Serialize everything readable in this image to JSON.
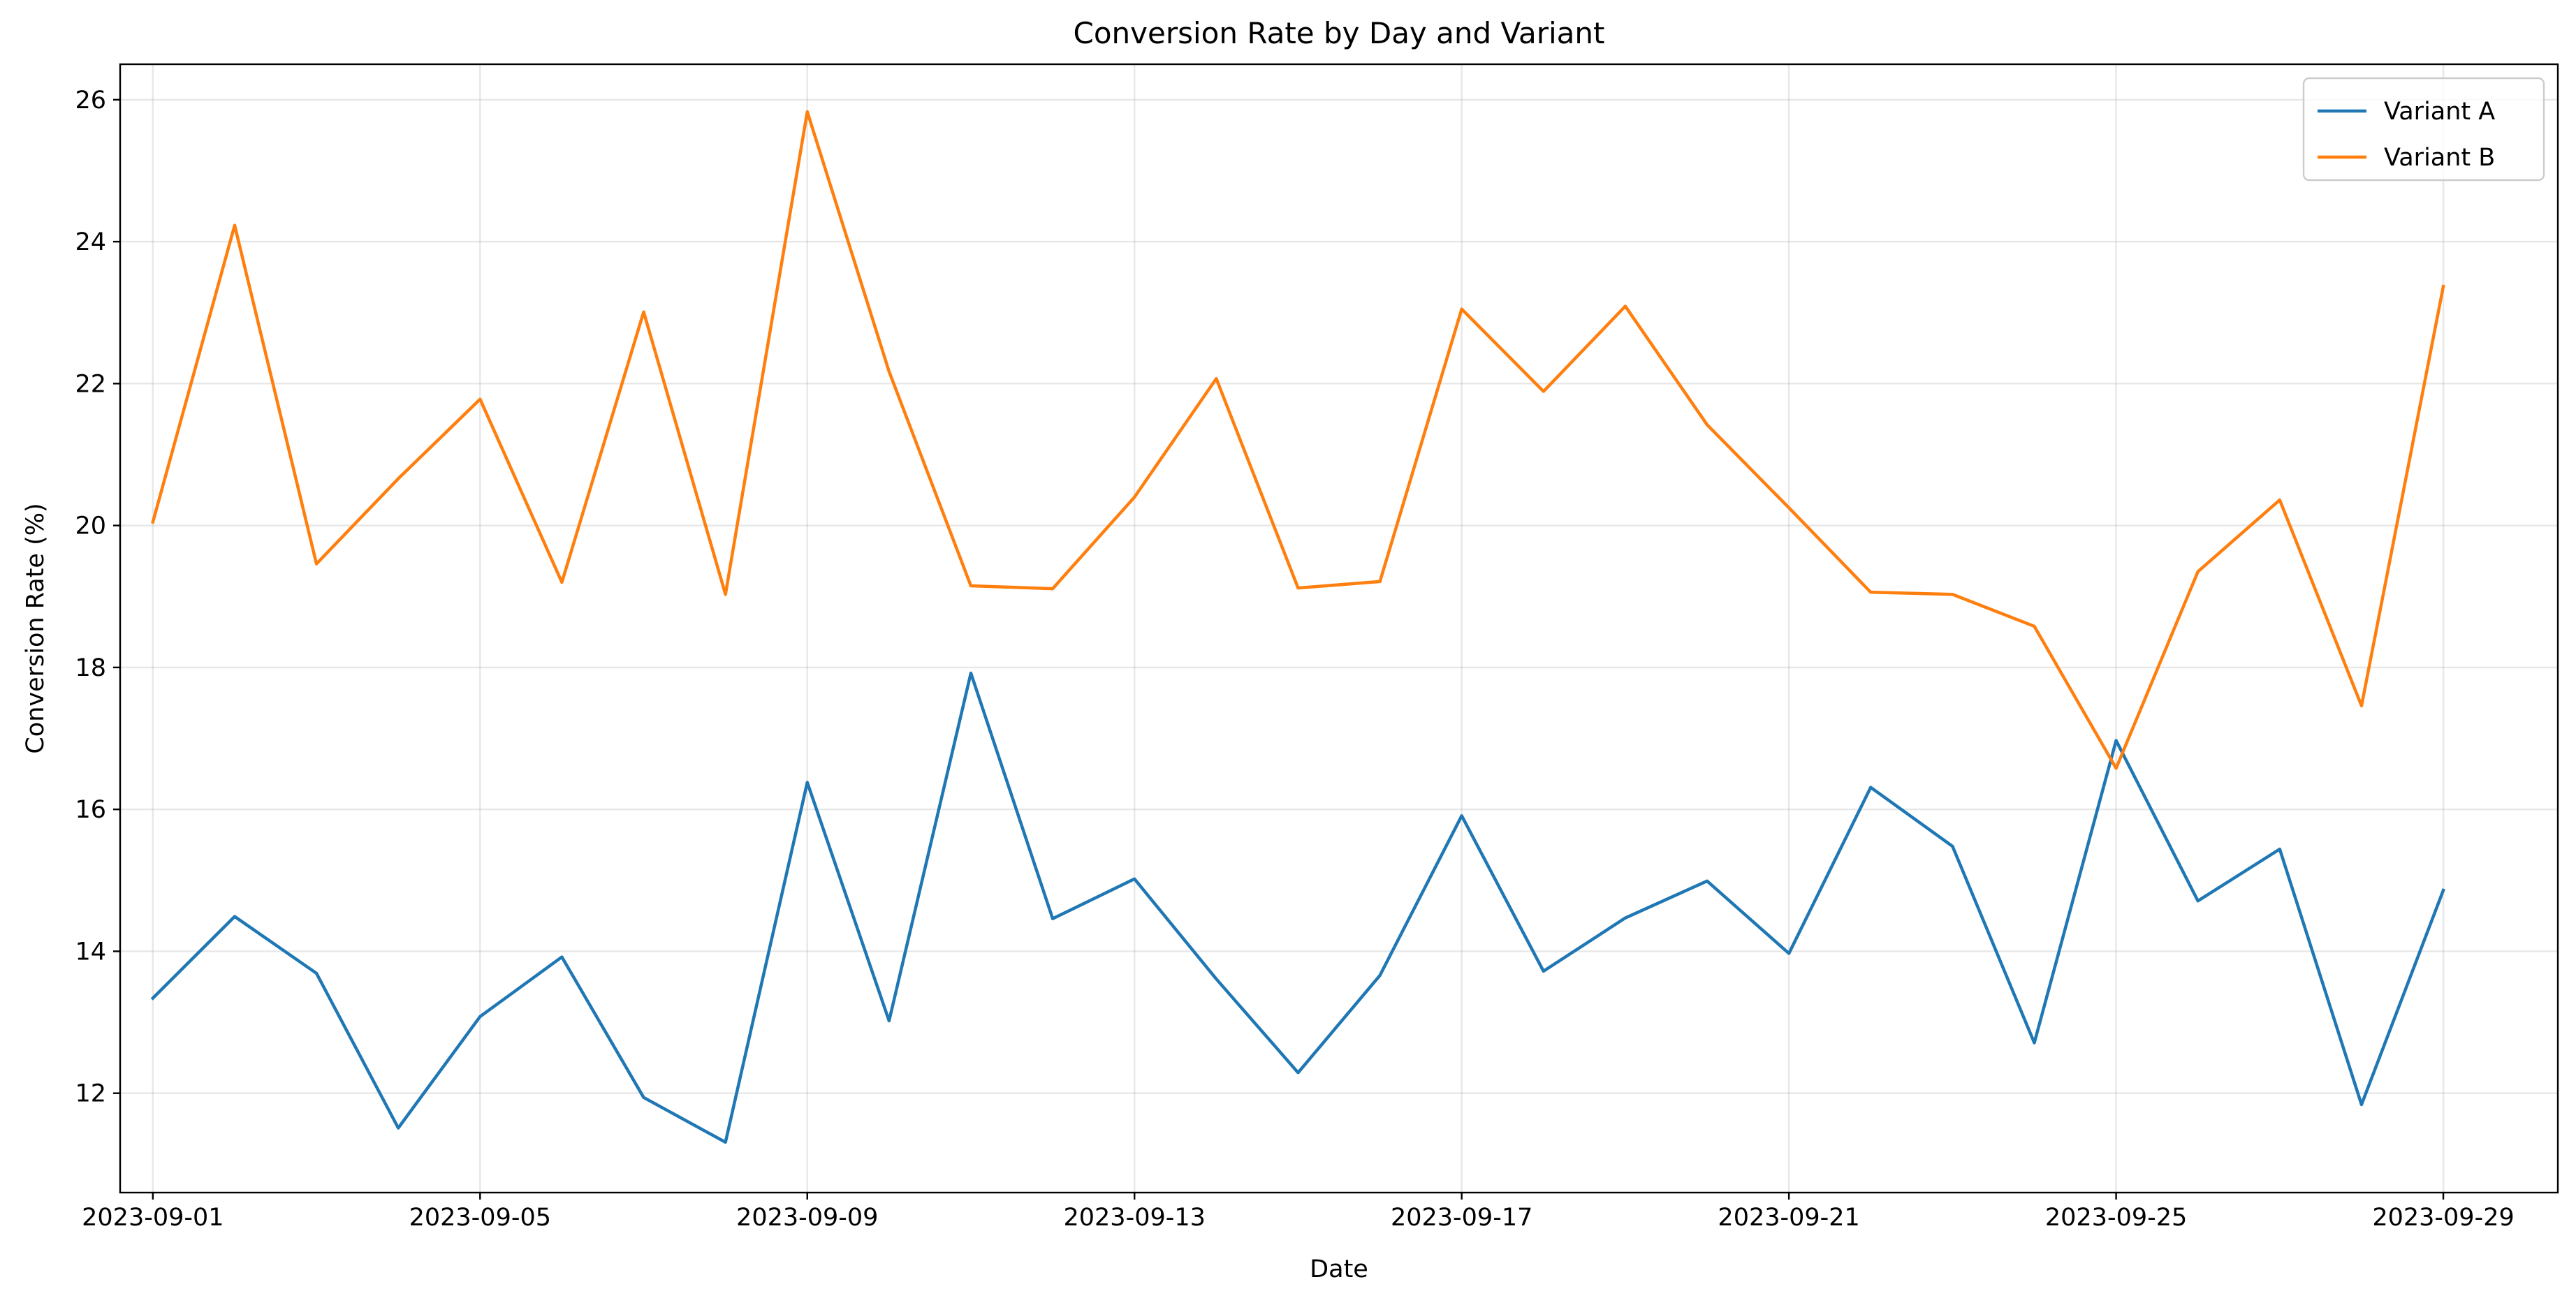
{
  "chart_data": {
    "type": "line",
    "title": "Conversion Rate by Day and Variant",
    "xlabel": "Date",
    "ylabel": "Conversion Rate (%)",
    "x": [
      "2023-09-01",
      "2023-09-02",
      "2023-09-03",
      "2023-09-04",
      "2023-09-05",
      "2023-09-06",
      "2023-09-07",
      "2023-09-08",
      "2023-09-09",
      "2023-09-10",
      "2023-09-11",
      "2023-09-12",
      "2023-09-13",
      "2023-09-14",
      "2023-09-15",
      "2023-09-16",
      "2023-09-17",
      "2023-09-18",
      "2023-09-19",
      "2023-09-20",
      "2023-09-21",
      "2023-09-22",
      "2023-09-23",
      "2023-09-24",
      "2023-09-25",
      "2023-09-26",
      "2023-09-27",
      "2023-09-28",
      "2023-09-29"
    ],
    "xticks": [
      "2023-09-01",
      "2023-09-05",
      "2023-09-09",
      "2023-09-13",
      "2023-09-17",
      "2023-09-21",
      "2023-09-25",
      "2023-09-29"
    ],
    "xlim": [
      "2023-08-31T14:24",
      "2023-09-30T09:36"
    ],
    "ylim": [
      10.6,
      26.5
    ],
    "yticks": [
      12,
      14,
      16,
      18,
      20,
      22,
      24,
      26
    ],
    "grid": true,
    "legend_position": "top-right",
    "series": [
      {
        "name": "Variant A",
        "color": "#1f77b4",
        "values": [
          13.34,
          14.49,
          13.69,
          11.51,
          13.08,
          13.92,
          11.94,
          11.31,
          16.38,
          13.02,
          17.92,
          14.46,
          15.02,
          13.61,
          12.29,
          13.66,
          15.91,
          13.72,
          14.47,
          14.99,
          13.97,
          16.31,
          15.48,
          12.71,
          16.97,
          14.71,
          15.44,
          11.84,
          14.86
        ]
      },
      {
        "name": "Variant B",
        "color": "#ff7f0e",
        "values": [
          20.05,
          24.23,
          19.46,
          20.66,
          21.78,
          19.2,
          23.01,
          19.03,
          25.83,
          22.17,
          19.15,
          19.11,
          20.4,
          22.07,
          19.12,
          19.21,
          23.05,
          21.89,
          23.09,
          21.42,
          20.25,
          19.06,
          19.03,
          18.58,
          16.58,
          19.35,
          20.36,
          17.46,
          23.37
        ]
      }
    ]
  }
}
